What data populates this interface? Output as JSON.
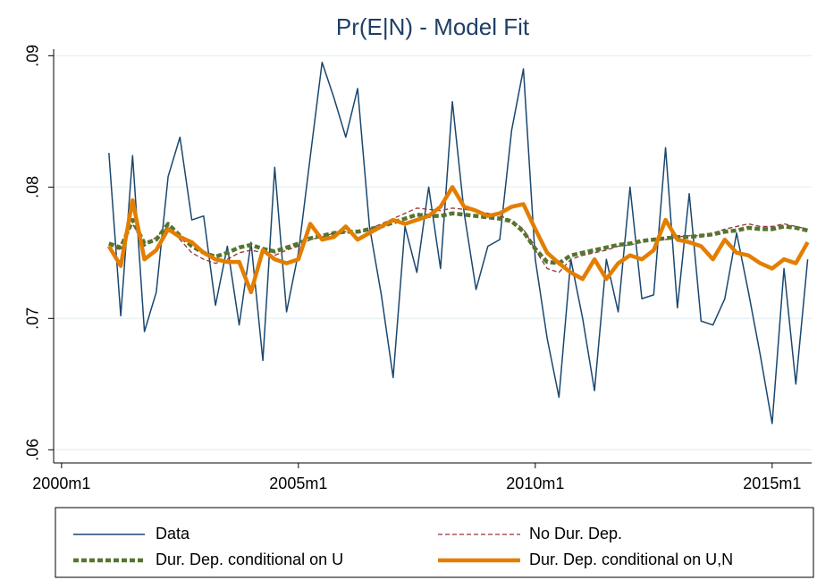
{
  "chart_data": {
    "type": "line",
    "title": "Pr(E|N) - Model Fit",
    "x": [
      "2001m1",
      "2001m4",
      "2001m7",
      "2001m10",
      "2002m1",
      "2002m4",
      "2002m7",
      "2002m10",
      "2003m1",
      "2003m4",
      "2003m7",
      "2003m10",
      "2004m1",
      "2004m4",
      "2004m7",
      "2004m10",
      "2005m1",
      "2005m4",
      "2005m7",
      "2005m10",
      "2006m1",
      "2006m4",
      "2006m7",
      "2006m10",
      "2007m1",
      "2007m4",
      "2007m7",
      "2007m10",
      "2008m1",
      "2008m4",
      "2008m7",
      "2008m10",
      "2009m1",
      "2009m4",
      "2009m7",
      "2009m10",
      "2010m1",
      "2010m4",
      "2010m7",
      "2010m10",
      "2011m1",
      "2011m4",
      "2011m7",
      "2011m10",
      "2012m1",
      "2012m4",
      "2012m7",
      "2012m10",
      "2013m1",
      "2013m4",
      "2013m7",
      "2013m10",
      "2014m1",
      "2014m4",
      "2014m7",
      "2014m10",
      "2015m1",
      "2015m4",
      "2015m7",
      "2015m10"
    ],
    "series": [
      {
        "name": "Data",
        "color": "#1a476f",
        "values": [
          0.0826,
          0.0702,
          0.0824,
          0.069,
          0.072,
          0.0808,
          0.0838,
          0.0775,
          0.0778,
          0.071,
          0.0755,
          0.0695,
          0.0758,
          0.0668,
          0.0815,
          0.0705,
          0.075,
          0.0823,
          0.0895,
          0.0868,
          0.0838,
          0.0875,
          0.077,
          0.0718,
          0.0655,
          0.077,
          0.0735,
          0.08,
          0.0738,
          0.0865,
          0.078,
          0.0722,
          0.0755,
          0.076,
          0.0843,
          0.089,
          0.0745,
          0.0685,
          0.064,
          0.0745,
          0.07,
          0.0645,
          0.0745,
          0.0705,
          0.08,
          0.0715,
          0.0718,
          0.083,
          0.0708,
          0.0795,
          0.0698,
          0.0695,
          0.0715,
          0.0765,
          0.072,
          0.0672,
          0.062,
          0.0738,
          0.065,
          0.0745
        ]
      },
      {
        "name": "No Dur. Dep.",
        "color": "#90353b",
        "values": [
          0.0756,
          0.0752,
          0.0772,
          0.0755,
          0.0762,
          0.077,
          0.076,
          0.075,
          0.0745,
          0.0742,
          0.0745,
          0.075,
          0.0752,
          0.075,
          0.0748,
          0.0752,
          0.0755,
          0.076,
          0.0762,
          0.0765,
          0.0766,
          0.0765,
          0.0768,
          0.0772,
          0.0776,
          0.078,
          0.0784,
          0.0783,
          0.0782,
          0.0784,
          0.0783,
          0.0782,
          0.078,
          0.0778,
          0.0775,
          0.0768,
          0.0752,
          0.0738,
          0.0735,
          0.0745,
          0.0748,
          0.075,
          0.0752,
          0.0755,
          0.0756,
          0.0758,
          0.076,
          0.076,
          0.0762,
          0.0763,
          0.0763,
          0.0765,
          0.0768,
          0.077,
          0.0772,
          0.077,
          0.077,
          0.0772,
          0.077,
          0.0768
        ]
      },
      {
        "name": "Dur. Dep. conditional on U",
        "color": "#55752f",
        "values": [
          0.0757,
          0.0754,
          0.0775,
          0.0757,
          0.076,
          0.0772,
          0.0763,
          0.0755,
          0.075,
          0.0747,
          0.075,
          0.0754,
          0.0756,
          0.0753,
          0.0751,
          0.0754,
          0.0757,
          0.0761,
          0.0763,
          0.0765,
          0.0766,
          0.0766,
          0.0768,
          0.077,
          0.0773,
          0.0776,
          0.0779,
          0.0778,
          0.0778,
          0.078,
          0.0779,
          0.0778,
          0.0777,
          0.0776,
          0.0774,
          0.0766,
          0.0753,
          0.0743,
          0.0742,
          0.0748,
          0.075,
          0.0752,
          0.0754,
          0.0756,
          0.0757,
          0.0759,
          0.076,
          0.0761,
          0.0762,
          0.0762,
          0.0763,
          0.0764,
          0.0766,
          0.0767,
          0.0769,
          0.0768,
          0.0768,
          0.077,
          0.0769,
          0.0767
        ]
      },
      {
        "name": "Dur. Dep. conditional on U,N",
        "color": "#e37e00",
        "values": [
          0.0755,
          0.074,
          0.079,
          0.0745,
          0.0752,
          0.0768,
          0.0762,
          0.0758,
          0.075,
          0.0745,
          0.0743,
          0.0743,
          0.072,
          0.0752,
          0.0745,
          0.0742,
          0.0745,
          0.0772,
          0.076,
          0.0762,
          0.077,
          0.076,
          0.0765,
          0.077,
          0.0775,
          0.0772,
          0.0775,
          0.0778,
          0.0785,
          0.08,
          0.0785,
          0.0782,
          0.0778,
          0.078,
          0.0785,
          0.0787,
          0.0768,
          0.075,
          0.0742,
          0.0735,
          0.073,
          0.0745,
          0.073,
          0.0742,
          0.0748,
          0.0745,
          0.0752,
          0.0775,
          0.076,
          0.0758,
          0.0755,
          0.0745,
          0.076,
          0.075,
          0.0748,
          0.0742,
          0.0738,
          0.0745,
          0.0742,
          0.0758
        ]
      }
    ],
    "xlim": [
      "1999m11",
      "2015m11"
    ],
    "xticks": [
      "2000m1",
      "2005m1",
      "2010m1",
      "2015m1"
    ],
    "ylim": [
      0.059,
      0.0905
    ],
    "yticks": [
      {
        "value": 0.06,
        "label": ".06"
      },
      {
        "value": 0.07,
        "label": ".07"
      },
      {
        "value": 0.08,
        "label": ".08"
      },
      {
        "value": 0.09,
        "label": ".09"
      }
    ],
    "grid": true,
    "legend": "bottom"
  }
}
